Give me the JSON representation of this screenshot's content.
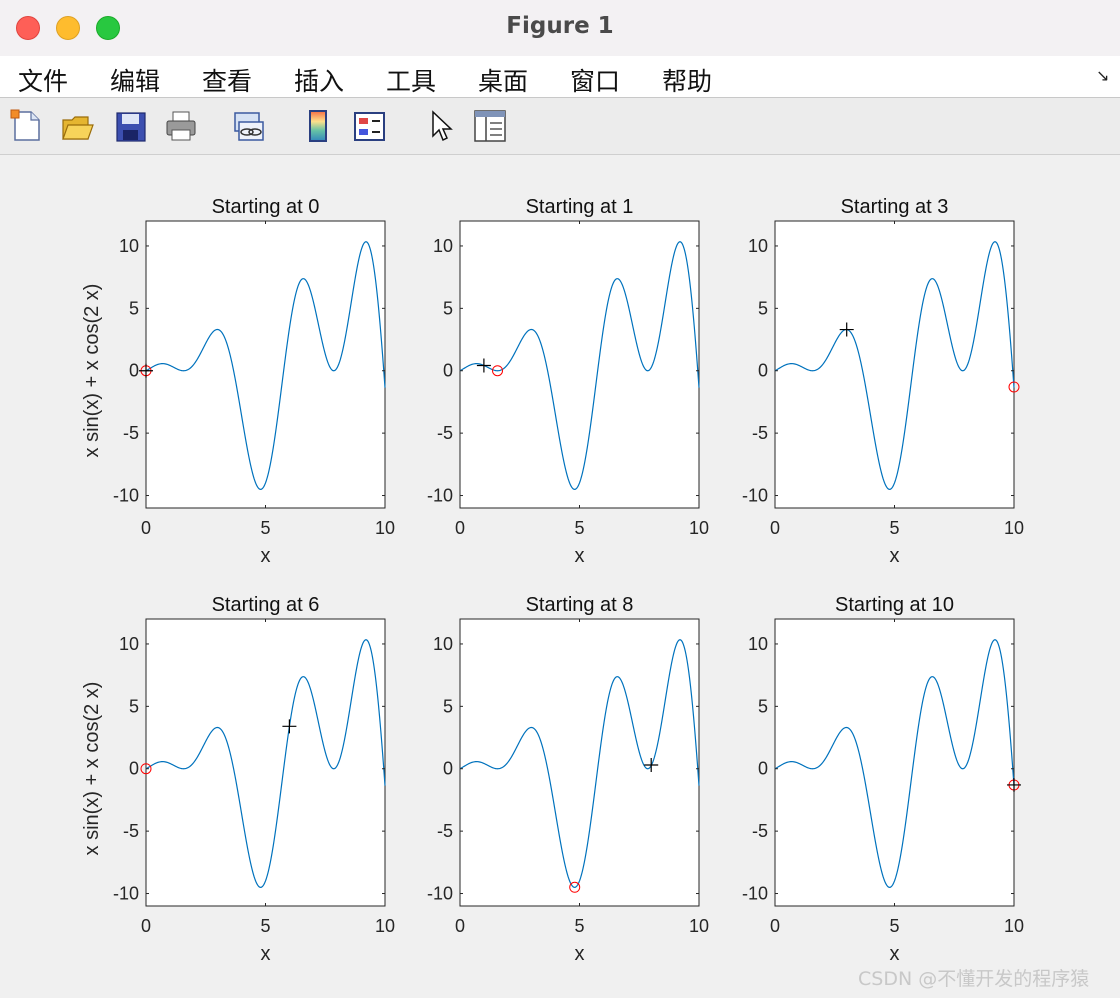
{
  "window": {
    "title": "Figure 1"
  },
  "menu": {
    "items": [
      {
        "label": "文件"
      },
      {
        "label": "编辑"
      },
      {
        "label": "查看"
      },
      {
        "label": "插入"
      },
      {
        "label": "工具"
      },
      {
        "label": "桌面"
      },
      {
        "label": "窗口"
      },
      {
        "label": "帮助"
      }
    ],
    "overflow": "↘"
  },
  "toolbar": {
    "buttons": [
      {
        "icon": "new-figure-icon"
      },
      {
        "icon": "open-file-icon"
      },
      {
        "icon": "save-icon"
      },
      {
        "icon": "print-icon"
      },
      {
        "icon": "link-plot-icon"
      },
      {
        "icon": "colorbar-icon"
      },
      {
        "icon": "legend-icon"
      },
      {
        "icon": "edit-plot-pointer-icon"
      },
      {
        "icon": "property-inspector-icon"
      }
    ]
  },
  "colors": {
    "curve": "#0072bd",
    "start_marker": "#000000",
    "end_marker": "#ff0000",
    "axes_bg": "#ffffff",
    "figure_bg": "#f0f0f0"
  },
  "chart_data": [
    {
      "type": "line",
      "title": "Starting at 0",
      "xlabel": "x",
      "ylabel": "x sin(x) + x cos(2 x)",
      "xlim": [
        0,
        10
      ],
      "ylim": [
        -11,
        12
      ],
      "xticks": [
        "0",
        "5",
        "10"
      ],
      "yticks": [
        "-10",
        "-5",
        "0",
        "5",
        "10"
      ],
      "function": "x sin(x) + x cos(2 x)",
      "start_point": {
        "x": 0,
        "y": 0
      },
      "end_point": {
        "x": 0,
        "y": 0
      }
    },
    {
      "type": "line",
      "title": "Starting at 1",
      "xlabel": "x",
      "ylabel": "",
      "xlim": [
        0,
        10
      ],
      "ylim": [
        -11,
        12
      ],
      "xticks": [
        "0",
        "5",
        "10"
      ],
      "yticks": [
        "-10",
        "-5",
        "0",
        "5",
        "10"
      ],
      "function": "x sin(x) + x cos(2 x)",
      "start_point": {
        "x": 1,
        "y": 0.42
      },
      "end_point": {
        "x": 1.57,
        "y": 0
      }
    },
    {
      "type": "line",
      "title": "Starting at 3",
      "xlabel": "x",
      "ylabel": "",
      "xlim": [
        0,
        10
      ],
      "ylim": [
        -11,
        12
      ],
      "xticks": [
        "0",
        "5",
        "10"
      ],
      "yticks": [
        "-10",
        "-5",
        "0",
        "5",
        "10"
      ],
      "function": "x sin(x) + x cos(2 x)",
      "start_point": {
        "x": 3,
        "y": 3.3
      },
      "end_point": {
        "x": 10,
        "y": -1.3
      }
    },
    {
      "type": "line",
      "title": "Starting at 6",
      "xlabel": "x",
      "ylabel": "x sin(x) + x cos(2 x)",
      "xlim": [
        0,
        10
      ],
      "ylim": [
        -11,
        12
      ],
      "xticks": [
        "0",
        "5",
        "10"
      ],
      "yticks": [
        "-10",
        "-5",
        "0",
        "5",
        "10"
      ],
      "function": "x sin(x) + x cos(2 x)",
      "start_point": {
        "x": 6,
        "y": 3.4
      },
      "end_point": {
        "x": 0,
        "y": 0
      }
    },
    {
      "type": "line",
      "title": "Starting at 8",
      "xlabel": "x",
      "ylabel": "",
      "xlim": [
        0,
        10
      ],
      "ylim": [
        -11,
        12
      ],
      "xticks": [
        "0",
        "5",
        "10"
      ],
      "yticks": [
        "-10",
        "-5",
        "0",
        "5",
        "10"
      ],
      "function": "x sin(x) + x cos(2 x)",
      "start_point": {
        "x": 8,
        "y": 0.3
      },
      "end_point": {
        "x": 4.8,
        "y": -9.5
      }
    },
    {
      "type": "line",
      "title": "Starting at 10",
      "xlabel": "x",
      "ylabel": "",
      "xlim": [
        0,
        10
      ],
      "ylim": [
        -11,
        12
      ],
      "xticks": [
        "0",
        "5",
        "10"
      ],
      "yticks": [
        "-10",
        "-5",
        "0",
        "5",
        "10"
      ],
      "function": "x sin(x) + x cos(2 x)",
      "start_point": {
        "x": 10,
        "y": -1.3
      },
      "end_point": {
        "x": 10,
        "y": -1.3
      }
    }
  ],
  "watermark": "CSDN @不懂开发的程序猿"
}
